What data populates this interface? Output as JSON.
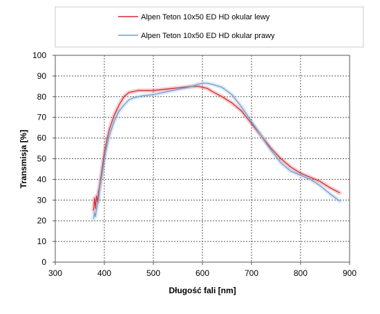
{
  "chart_data": {
    "type": "line",
    "title": "",
    "xlabel": "Długość fali [nm]",
    "ylabel": "Transmisja [%]",
    "xlim": [
      300,
      900
    ],
    "ylim": [
      0,
      100
    ],
    "x_ticks": [
      300,
      400,
      500,
      600,
      700,
      800,
      900
    ],
    "y_ticks": [
      0,
      10,
      20,
      30,
      40,
      50,
      60,
      70,
      80,
      90,
      100
    ],
    "grid": true,
    "legend_position": "top",
    "series": [
      {
        "name": "Alpen Teton 10x50 ED HD okular lewy",
        "color": "#d42a32",
        "x": [
          378,
          380,
          382,
          384,
          386,
          388,
          390,
          395,
          400,
          405,
          410,
          420,
          430,
          440,
          450,
          460,
          470,
          480,
          500,
          520,
          540,
          560,
          580,
          590,
          600,
          610,
          620,
          640,
          660,
          680,
          700,
          720,
          740,
          760,
          780,
          800,
          820,
          840,
          860,
          880
        ],
        "y": [
          25,
          31,
          26,
          32,
          29,
          34,
          36,
          44,
          53,
          59,
          64,
          71,
          76,
          80,
          82,
          82.5,
          83,
          83,
          83,
          83.5,
          84,
          84.5,
          85,
          85,
          84.5,
          84,
          82.5,
          80,
          77,
          73,
          67,
          61,
          55,
          50,
          46,
          43,
          41,
          39,
          36,
          33.5
        ]
      },
      {
        "name": "Alpen Teton 10x50 ED HD okular prawy",
        "color": "#6f9fce",
        "x": [
          378,
          380,
          382,
          385,
          388,
          390,
          395,
          400,
          405,
          410,
          420,
          430,
          440,
          450,
          460,
          470,
          480,
          500,
          520,
          540,
          560,
          580,
          590,
          600,
          610,
          620,
          640,
          660,
          670,
          680,
          700,
          720,
          740,
          760,
          780,
          800,
          820,
          840,
          860,
          880
        ],
        "y": [
          21,
          24,
          22,
          27,
          30,
          35,
          42,
          50,
          56,
          61,
          68,
          73,
          76,
          78.5,
          79.5,
          80,
          80.5,
          81,
          82,
          83,
          84,
          85,
          86,
          86.5,
          86.5,
          86,
          84.5,
          81,
          78,
          75,
          68,
          61,
          54,
          48,
          44,
          42,
          40,
          37,
          33,
          29.5
        ]
      }
    ]
  }
}
